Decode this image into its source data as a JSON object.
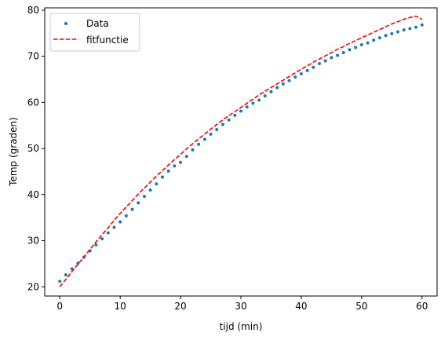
{
  "chart_data": {
    "type": "line",
    "xlabel": "tijd (min)",
    "ylabel": "Temp (graden)",
    "xlim": [
      -2.5,
      62.5
    ],
    "ylim": [
      18,
      80.5
    ],
    "xticks": [
      0,
      10,
      20,
      30,
      40,
      50,
      60
    ],
    "yticks": [
      20,
      30,
      40,
      50,
      60,
      70,
      80
    ],
    "grid": false,
    "legend_position": "top-left",
    "series": [
      {
        "name": "Data",
        "style": "points",
        "color": "#1f77b4",
        "x": [
          0,
          1,
          2,
          3,
          4,
          5,
          6,
          7,
          8,
          9,
          10,
          11,
          12,
          13,
          14,
          15,
          16,
          17,
          18,
          19,
          20,
          21,
          22,
          23,
          24,
          25,
          26,
          27,
          28,
          29,
          30,
          31,
          32,
          33,
          34,
          35,
          36,
          37,
          38,
          39,
          40,
          41,
          42,
          43,
          44,
          45,
          46,
          47,
          48,
          49,
          50,
          51,
          52,
          53,
          54,
          55,
          56,
          57,
          58,
          59,
          60
        ],
        "y": [
          21.2,
          22.6,
          23.9,
          25.1,
          26.4,
          27.8,
          29.1,
          30.4,
          31.7,
          32.9,
          34.1,
          35.4,
          36.8,
          38.2,
          39.6,
          41.0,
          42.3,
          43.8,
          45.1,
          46.2,
          47.0,
          48.3,
          49.7,
          50.9,
          52.0,
          53.1,
          54.1,
          55.2,
          56.2,
          57.2,
          58.1,
          59.0,
          59.8,
          60.5,
          61.4,
          62.3,
          63.2,
          64.0,
          64.7,
          65.5,
          66.2,
          66.9,
          67.6,
          68.4,
          69.0,
          69.7,
          70.2,
          70.8,
          71.4,
          71.9,
          72.5,
          72.9,
          73.5,
          74.0,
          74.5,
          74.9,
          75.3,
          75.7,
          76.0,
          76.3,
          76.8
        ]
      },
      {
        "name": "fitfunctie",
        "style": "dashed-line",
        "color": "#ff0000",
        "x": [
          0,
          1,
          2,
          3,
          4,
          5,
          6,
          7,
          8,
          9,
          10,
          11,
          12,
          13,
          14,
          15,
          16,
          17,
          18,
          19,
          20,
          21,
          22,
          23,
          24,
          25,
          26,
          27,
          28,
          29,
          30,
          31,
          32,
          33,
          34,
          35,
          36,
          37,
          38,
          39,
          40,
          41,
          42,
          43,
          44,
          45,
          46,
          47,
          48,
          49,
          50,
          51,
          52,
          53,
          54,
          55,
          56,
          57,
          58,
          59,
          60
        ],
        "y": [
          20.0,
          21.6,
          23.3,
          24.9,
          26.5,
          28.1,
          29.7,
          31.3,
          32.8,
          34.4,
          35.9,
          37.3,
          38.7,
          40.1,
          41.4,
          42.7,
          44.0,
          45.2,
          46.4,
          47.6,
          48.7,
          49.9,
          51.0,
          52.1,
          53.1,
          54.2,
          55.2,
          56.2,
          57.1,
          58.0,
          58.9,
          59.8,
          60.7,
          61.6,
          62.4,
          63.2,
          64.0,
          64.8,
          65.6,
          66.4,
          67.2,
          67.9,
          68.7,
          69.4,
          70.1,
          70.8,
          71.5,
          72.1,
          72.8,
          73.4,
          74.0,
          74.6,
          75.2,
          75.8,
          76.4,
          77.0,
          77.5,
          78.0,
          78.4,
          78.7,
          78.0
        ]
      }
    ]
  }
}
